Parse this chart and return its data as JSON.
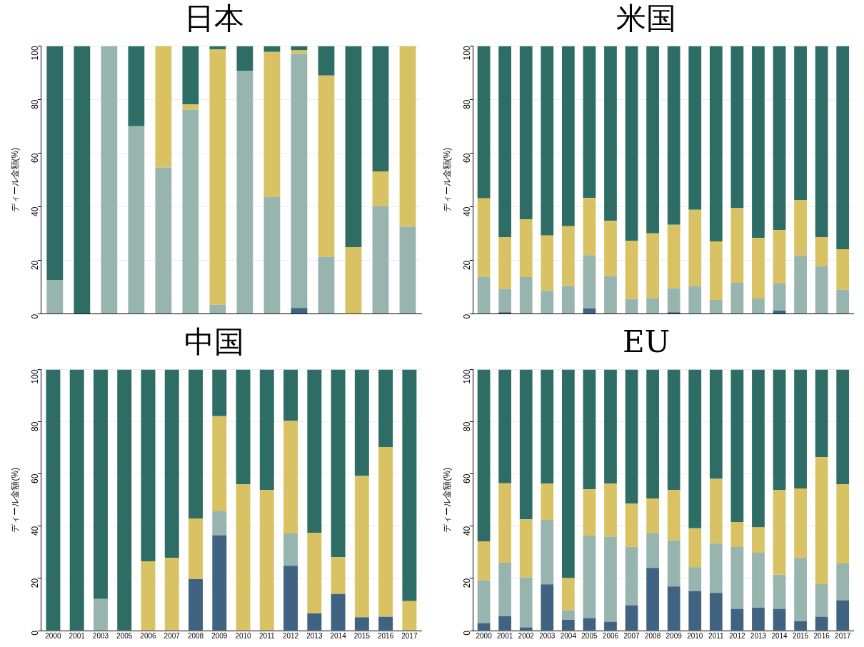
{
  "chart_data": [
    {
      "type": "bar",
      "stacked": true,
      "title": "日本",
      "ylabel": "ディール金額(%)",
      "categories": [
        null,
        null,
        null,
        null,
        null,
        null,
        null,
        null,
        null,
        null,
        null,
        null,
        null,
        null
      ],
      "ylim": [
        0,
        100
      ],
      "yticks": [
        0,
        20,
        40,
        60,
        80,
        100
      ],
      "grid": "y",
      "tick_labels": "y",
      "series": [
        {
          "color": "#3f6380",
          "values": [
            0,
            0,
            0,
            0,
            0,
            0,
            0,
            0,
            0,
            2.3,
            0,
            0,
            0,
            0
          ]
        },
        {
          "color": "#97b5ae",
          "values": [
            12.7,
            0,
            100,
            70.1,
            54.7,
            76.2,
            3.5,
            90.8,
            43.8,
            94.7,
            21.4,
            0,
            40.4,
            32.6
          ]
        },
        {
          "color": "#d9c263",
          "values": [
            0,
            0,
            0,
            0,
            45.3,
            2,
            95.2,
            0,
            54,
            1.4,
            67.6,
            25,
            12.8,
            67.4
          ]
        },
        {
          "color": "#2e6d65",
          "values": [
            87.3,
            100,
            0,
            29.9,
            0,
            21.8,
            1.3,
            9.2,
            2.2,
            1.6,
            11,
            75,
            46.8,
            0
          ]
        }
      ]
    },
    {
      "type": "bar",
      "stacked": true,
      "title": "米国",
      "ylabel": "ディール金額(%)",
      "categories": [
        null,
        null,
        null,
        null,
        null,
        null,
        null,
        null,
        null,
        null,
        null,
        null,
        null,
        null,
        null,
        null,
        null,
        null
      ],
      "ylim": [
        0,
        100
      ],
      "yticks": [
        0,
        20,
        40,
        60,
        80,
        100
      ],
      "grid": "y",
      "tick_labels": "y",
      "series": [
        {
          "color": "#3f6380",
          "values": [
            0,
            0.7,
            0,
            0,
            0,
            2.1,
            0,
            0,
            0,
            0.7,
            0,
            0,
            0,
            0,
            1.3,
            0,
            0,
            0
          ]
        },
        {
          "color": "#97b5ae",
          "values": [
            13.9,
            8.7,
            13.8,
            8.7,
            10.5,
            19.9,
            14.1,
            5.6,
            6,
            9,
            10.4,
            5.3,
            11.7,
            5.8,
            10.1,
            21.7,
            17.8,
            9.1
          ]
        },
        {
          "color": "#d9c263",
          "values": [
            29.3,
            19.3,
            21.5,
            20.6,
            22.3,
            21.3,
            20.7,
            21.8,
            24.1,
            23.6,
            28.5,
            21.8,
            27.8,
            22.6,
            19.9,
            20.9,
            10.9,
            15.1
          ]
        },
        {
          "color": "#2e6d65",
          "values": [
            56.8,
            71.3,
            64.7,
            70.7,
            67.2,
            56.7,
            65.2,
            72.6,
            69.9,
            66.7,
            61.1,
            72.9,
            60.5,
            71.6,
            68.7,
            57.4,
            71.3,
            75.8
          ]
        }
      ]
    },
    {
      "type": "bar",
      "stacked": true,
      "title": "中国",
      "ylabel": "ディール金額(%)",
      "categories": [
        "2000",
        "2001",
        "2003",
        "2005",
        "2006",
        "2007",
        "2008",
        "2009",
        "2010",
        "2011",
        "2012",
        "2013",
        "2014",
        "2015",
        "2016",
        "2017"
      ],
      "ylim": [
        0,
        100
      ],
      "yticks": [
        0,
        20,
        40,
        60,
        80,
        100
      ],
      "grid": "y",
      "series": [
        {
          "color": "#3f6380",
          "values": [
            0,
            0,
            0,
            0,
            0,
            0,
            19.7,
            36.5,
            0,
            0,
            24.8,
            6.6,
            14,
            5.1,
            5.3,
            0
          ]
        },
        {
          "color": "#97b5ae",
          "values": [
            0,
            0,
            12.1,
            0,
            0,
            0,
            0,
            9.2,
            0,
            0,
            12.4,
            0,
            0,
            0,
            0,
            0
          ]
        },
        {
          "color": "#d9c263",
          "values": [
            0,
            0,
            0,
            0,
            26.5,
            27.8,
            23.2,
            36.4,
            56,
            53.8,
            43.2,
            30.9,
            14.1,
            54.1,
            65,
            11.3
          ]
        },
        {
          "color": "#2e6d65",
          "values": [
            100,
            100,
            87.9,
            100,
            73.5,
            72.2,
            57.1,
            17.9,
            44,
            46.2,
            19.6,
            62.5,
            71.9,
            40.8,
            29.7,
            88.7
          ]
        }
      ]
    },
    {
      "type": "bar",
      "stacked": true,
      "title": "EU",
      "ylabel": "ディール金額(%)",
      "categories": [
        "2000",
        "2001",
        "2002",
        "2003",
        "2004",
        "2005",
        "2006",
        "2007",
        "2008",
        "2009",
        "2010",
        "2011",
        "2012",
        "2013",
        "2014",
        "2015",
        "2016",
        "2017"
      ],
      "ylim": [
        0,
        100
      ],
      "yticks": [
        0,
        20,
        40,
        60,
        80,
        100
      ],
      "grid": "y",
      "series": [
        {
          "color": "#3f6380",
          "values": [
            2.9,
            5.5,
            1.2,
            17.7,
            4.1,
            4.8,
            3.4,
            9.7,
            24,
            16.9,
            15.1,
            14.4,
            8.3,
            8.8,
            8.3,
            3.6,
            5.3,
            11.6
          ]
        },
        {
          "color": "#97b5ae",
          "values": [
            16.3,
            20.5,
            19.2,
            24.7,
            3.6,
            31.6,
            32.6,
            22.4,
            13.4,
            17.7,
            9.2,
            19.1,
            23.7,
            21,
            13.1,
            24.2,
            12.5,
            14.1
          ]
        },
        {
          "color": "#d9c263",
          "values": [
            15,
            30.4,
            22.2,
            13.9,
            12.4,
            17.7,
            20.3,
            16.5,
            13.2,
            19.3,
            14.9,
            24.6,
            9.6,
            9.7,
            32.5,
            26.6,
            48.6,
            30.4
          ]
        },
        {
          "color": "#2e6d65",
          "values": [
            65.8,
            43.6,
            57.4,
            43.7,
            79.9,
            45.9,
            43.7,
            51.4,
            49.4,
            46.1,
            60.8,
            41.9,
            58.4,
            60.5,
            46.1,
            45.6,
            33.6,
            43.9
          ]
        }
      ]
    }
  ]
}
